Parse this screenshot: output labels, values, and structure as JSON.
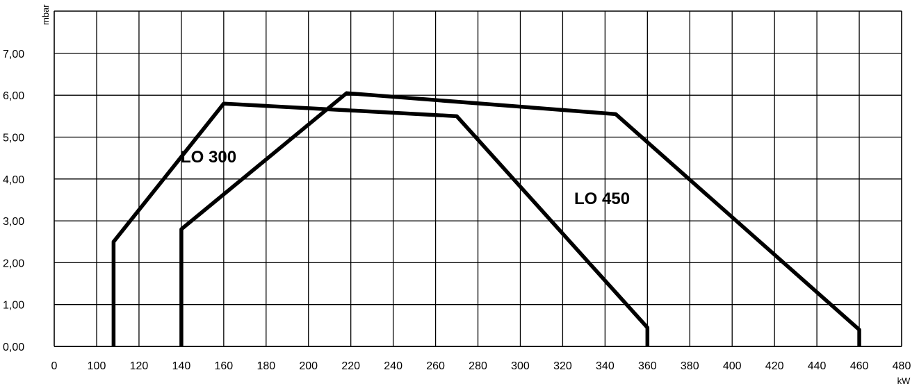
{
  "chart_data": {
    "type": "line",
    "xlabel": "kW",
    "ylabel": "mbar",
    "xlim": [
      0,
      480
    ],
    "ylim": [
      0,
      8
    ],
    "grid": true,
    "legend": "none",
    "x_ticks": [
      "0",
      "100",
      "120",
      "140",
      "160",
      "180",
      "200",
      "220",
      "240",
      "260",
      "280",
      "300",
      "320",
      "340",
      "360",
      "380",
      "400",
      "420",
      "440",
      "460",
      "480"
    ],
    "y_ticks": [
      "0,00",
      "1,00",
      "2,00",
      "3,00",
      "4,00",
      "5,00",
      "6,00",
      "7,00"
    ],
    "series": [
      {
        "name": "LO 300",
        "points": [
          [
            108,
            0
          ],
          [
            108,
            2.5
          ],
          [
            160,
            5.8
          ],
          [
            270,
            5.5
          ],
          [
            360,
            0.45
          ],
          [
            360,
            0
          ]
        ]
      },
      {
        "name": "LO 450",
        "points": [
          [
            140,
            0
          ],
          [
            140,
            2.8
          ],
          [
            218,
            6.05
          ],
          [
            345,
            5.55
          ],
          [
            460,
            0.4
          ],
          [
            460,
            0
          ]
        ]
      }
    ],
    "line_color": "#000000"
  }
}
